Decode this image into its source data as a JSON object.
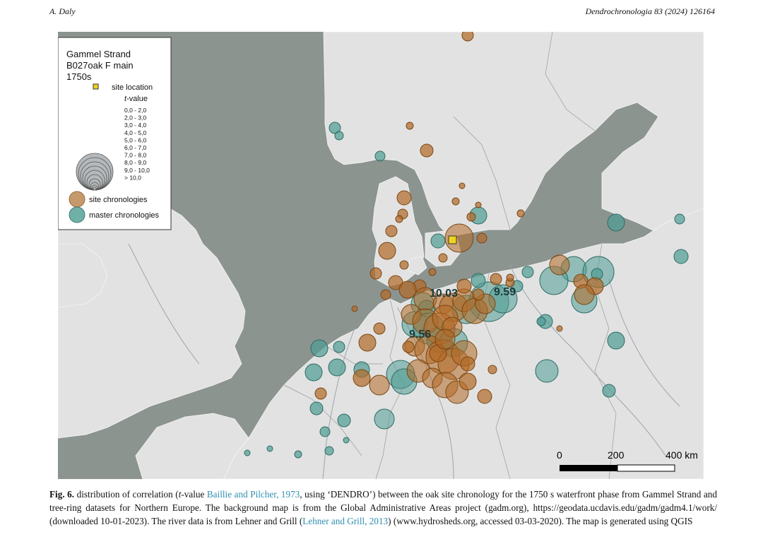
{
  "header": {
    "author": "A. Daly",
    "journal": "Dendrochronologia 83 (2024) 126164"
  },
  "legend": {
    "title_lines": [
      "Gammel Strand",
      "B027oak F main",
      "1750s"
    ],
    "site_location": "site location",
    "tvalue_prefix": "t",
    "tvalue_suffix": "-value",
    "classes": [
      "0,0 - 2,0",
      "2,0 - 3,0",
      "3,0 - 4,0",
      "4,0 - 5,0",
      "5,0 - 6,0",
      "6,0 - 7,0",
      "7,0 - 8,0",
      "8,0 - 9,0",
      "9,0 - 10,0",
      "> 10,0"
    ],
    "site_chronologies": "site chronologies",
    "master_chronologies": "master chronologies"
  },
  "map": {
    "labels": [
      "10.03",
      "9.59",
      "9.56"
    ],
    "scale_ticks": [
      "0",
      "200",
      "400 km"
    ],
    "colors": {
      "sea": "#8c9490",
      "land": "#e2e2e2",
      "site": "#b26a26",
      "master": "#4f9d94",
      "site_location": "#f2d21c"
    }
  },
  "caption": {
    "label": "Fig. 6.",
    "part1": " distribution of correlation (",
    "t": "t",
    "part2": "-value ",
    "cite1": "Baillie and Pilcher, 1973",
    "part3": ", using ‘DENDRO’) between the oak site chronology for the 1750 s waterfront phase from Gammel Strand and tree-ring datasets for Northern Europe. The background map is from the Global Administrative Areas project (gadm.org), https://geodata.ucdavis.edu/gadm/gadm4.1/work/ (downloaded 10-01-2023). The river data is from Lehner and Grill (",
    "cite2": "Lehner and Grill, 2013",
    "part4": ") (www.hydrosheds.org, accessed 03-03-2020). The map is generated using QGIS"
  }
}
